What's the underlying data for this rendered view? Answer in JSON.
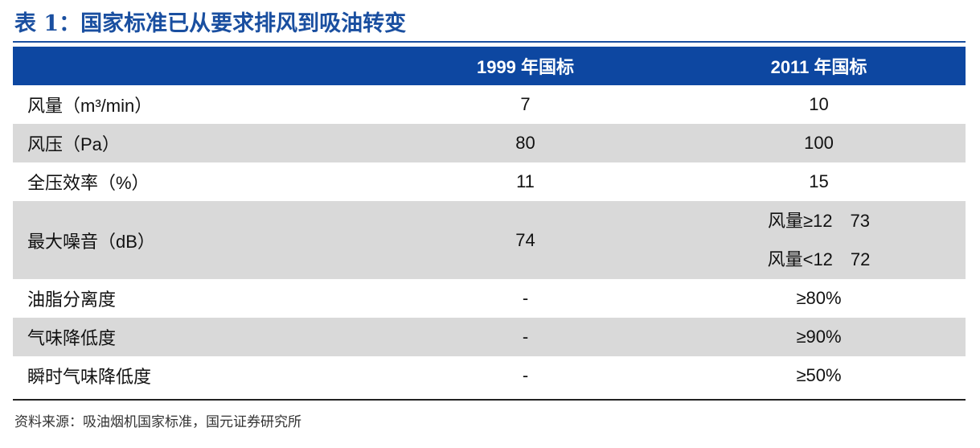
{
  "title": "表 1：国家标准已从要求排风到吸油转变",
  "table": {
    "headers": [
      "",
      "1999 年国标",
      "2011 年国标"
    ],
    "rows": [
      {
        "label": "风量（m³/min）",
        "v1999": "7",
        "v2011": "10"
      },
      {
        "label": "风压（Pa）",
        "v1999": "80",
        "v2011": "100"
      },
      {
        "label": "全压效率（%）",
        "v1999": "11",
        "v2011": "15"
      },
      {
        "label": "最大噪音（dB）",
        "v1999": "74",
        "v2011_lines": [
          "风量≥12　73",
          "风量<12　72"
        ]
      },
      {
        "label": "油脂分离度",
        "v1999": "-",
        "v2011": "≥80%"
      },
      {
        "label": "气味降低度",
        "v1999": "-",
        "v2011": "≥90%"
      },
      {
        "label": "瞬时气味降低度",
        "v1999": "-",
        "v2011": "≥50%"
      }
    ]
  },
  "source": "资料来源：吸油烟机国家标准，国元证券研究所"
}
